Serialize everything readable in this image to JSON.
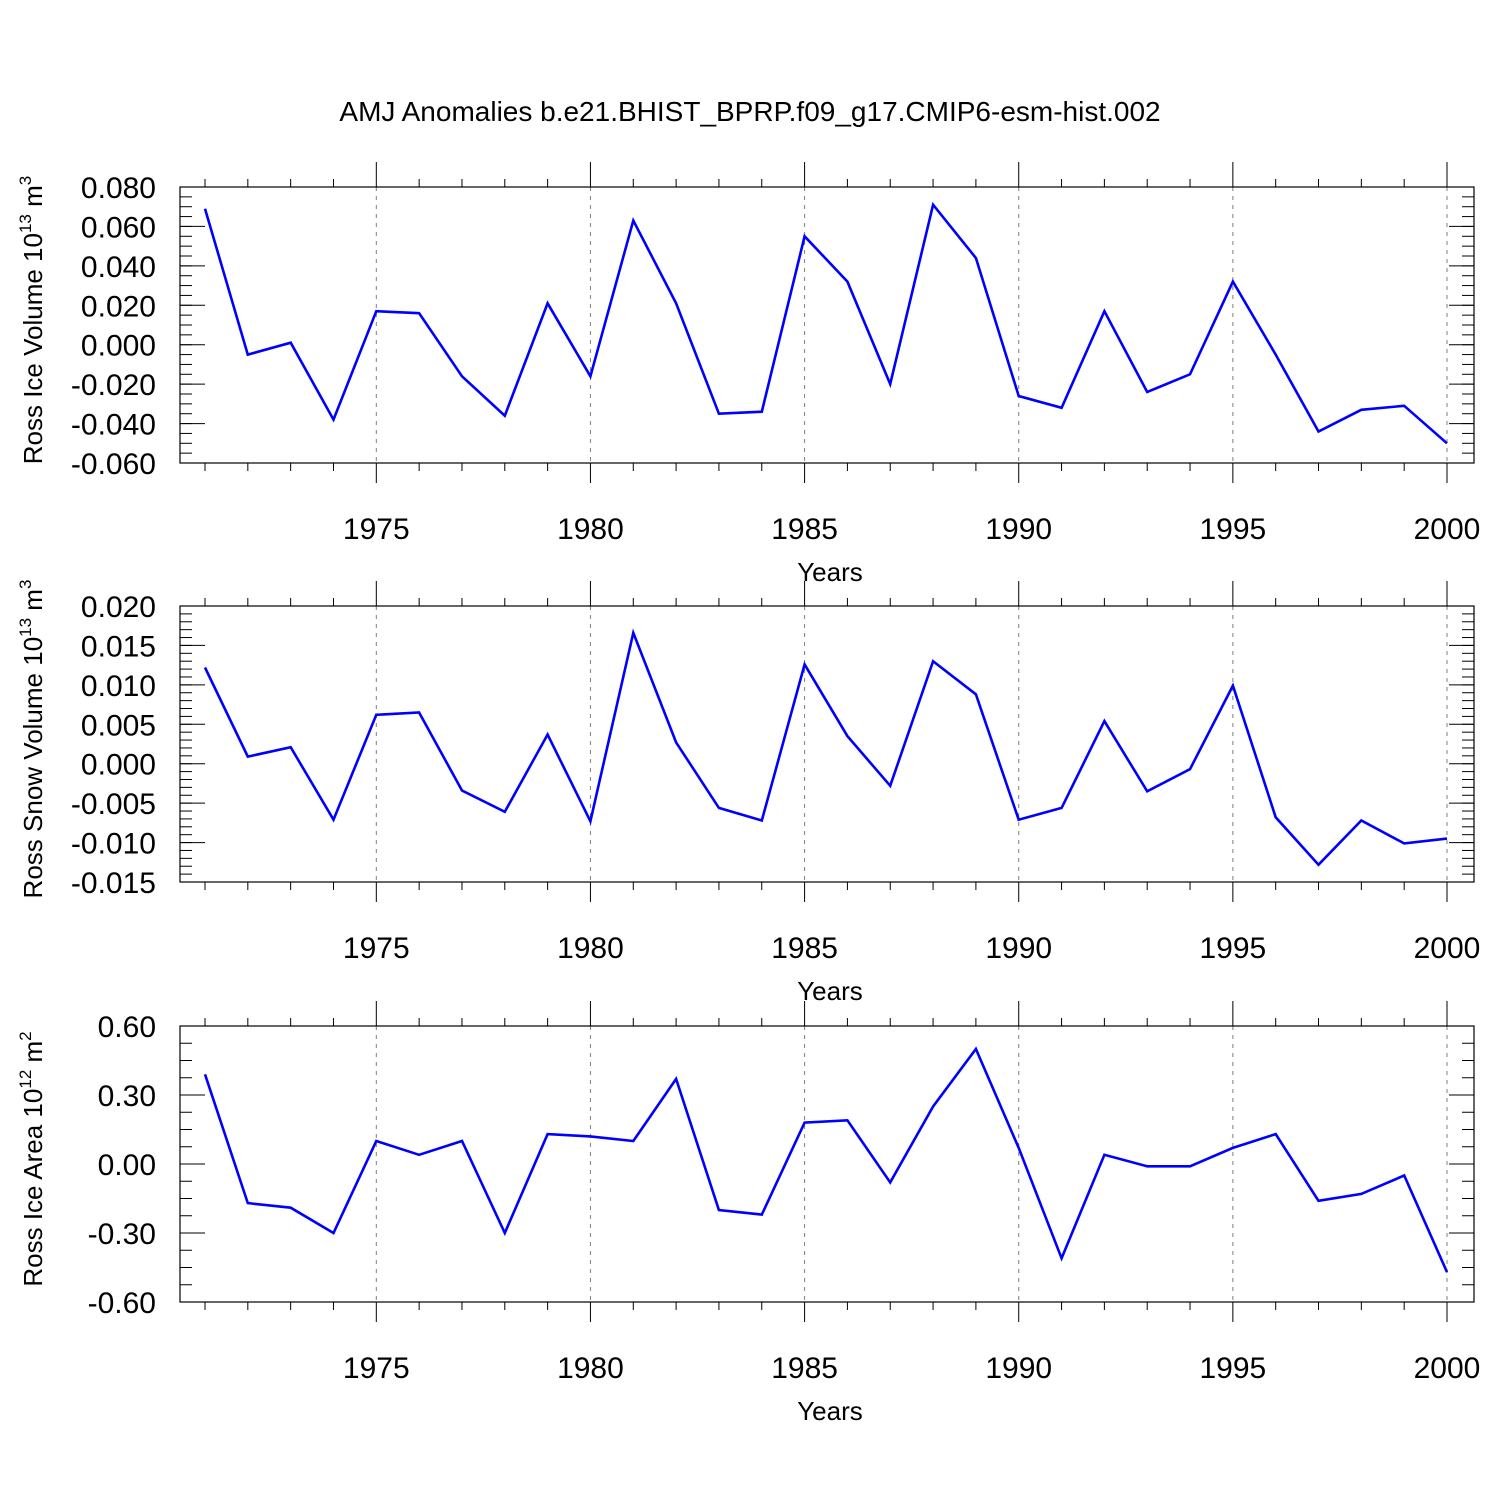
{
  "title": "AMJ Anomalies b.e21.BHIST_BPRP.f09_g17.CMIP6-esm-hist.002",
  "colors": {
    "line": "#0000ff",
    "axis": "#000000",
    "grid": "#7f7f7f"
  },
  "chart_data": [
    {
      "type": "line",
      "ylabel_main": "Ross Ice Volume 10",
      "ylabel_exp": "13",
      "ylabel_unit": "m",
      "ylabel_unit_exp": "3",
      "xlabel": "Years",
      "xlim": [
        1971,
        2000
      ],
      "ylim": [
        -0.06,
        0.08
      ],
      "yticks": [
        -0.06,
        -0.04,
        -0.02,
        0.0,
        0.02,
        0.04,
        0.06,
        0.08
      ],
      "ytick_labels": [
        "-0.060",
        "-0.040",
        "-0.020",
        "0.000",
        "0.020",
        "0.040",
        "0.060",
        "0.080"
      ],
      "yminor_step": 0.005,
      "xticks": [
        1975,
        1980,
        1985,
        1990,
        1995,
        2000
      ],
      "xtick_labels": [
        "1975",
        "1980",
        "1985",
        "1990",
        "1995",
        "2000"
      ],
      "grid": "vertical-dashed",
      "x": [
        1971,
        1972,
        1973,
        1974,
        1975,
        1976,
        1977,
        1978,
        1979,
        1980,
        1981,
        1982,
        1983,
        1984,
        1985,
        1986,
        1987,
        1988,
        1989,
        1990,
        1991,
        1992,
        1993,
        1994,
        1995,
        1996,
        1997,
        1998,
        1999,
        2000
      ],
      "y": [
        0.069,
        -0.005,
        0.001,
        -0.038,
        0.017,
        0.016,
        -0.016,
        -0.036,
        0.021,
        -0.016,
        0.063,
        0.021,
        -0.035,
        -0.034,
        0.055,
        0.032,
        -0.02,
        0.071,
        0.044,
        -0.026,
        -0.032,
        0.017,
        -0.024,
        -0.015,
        0.032,
        -0.005,
        -0.044,
        -0.033,
        -0.031,
        -0.05
      ]
    },
    {
      "type": "line",
      "ylabel_main": "Ross Snow Volume 10",
      "ylabel_exp": "13",
      "ylabel_unit": "m",
      "ylabel_unit_exp": "3",
      "xlabel": "Years",
      "xlim": [
        1971,
        2000
      ],
      "ylim": [
        -0.015,
        0.02
      ],
      "yticks": [
        -0.015,
        -0.01,
        -0.005,
        0.0,
        0.005,
        0.01,
        0.015,
        0.02
      ],
      "ytick_labels": [
        "-0.015",
        "-0.010",
        "-0.005",
        "0.000",
        "0.005",
        "0.010",
        "0.015",
        "0.020"
      ],
      "yminor_step": 0.001,
      "xticks": [
        1975,
        1980,
        1985,
        1990,
        1995,
        2000
      ],
      "xtick_labels": [
        "1975",
        "1980",
        "1985",
        "1990",
        "1995",
        "2000"
      ],
      "grid": "vertical-dashed",
      "x": [
        1971,
        1972,
        1973,
        1974,
        1975,
        1976,
        1977,
        1978,
        1979,
        1980,
        1981,
        1982,
        1983,
        1984,
        1985,
        1986,
        1987,
        1988,
        1989,
        1990,
        1991,
        1992,
        1993,
        1994,
        1995,
        1996,
        1997,
        1998,
        1999,
        2000
      ],
      "y": [
        0.0122,
        0.0009,
        0.0021,
        -0.0071,
        0.0062,
        0.0065,
        -0.0034,
        -0.0061,
        0.0037,
        -0.0073,
        0.0166,
        0.0027,
        -0.0056,
        -0.0072,
        0.0126,
        0.0035,
        -0.0028,
        0.013,
        0.0088,
        -0.0071,
        -0.0056,
        0.0054,
        -0.0035,
        -0.0007,
        0.0099,
        -0.0068,
        -0.0128,
        -0.0072,
        -0.0101,
        -0.0095
      ]
    },
    {
      "type": "line",
      "ylabel_main": "Ross Ice Area 10",
      "ylabel_exp": "12",
      "ylabel_unit": "m",
      "ylabel_unit_exp": "2",
      "xlabel": "Years",
      "xlim": [
        1971,
        2000
      ],
      "ylim": [
        -0.6,
        0.6
      ],
      "yticks": [
        -0.6,
        -0.3,
        0.0,
        0.3,
        0.6
      ],
      "ytick_labels": [
        "-0.60",
        "-0.30",
        "0.00",
        "0.30",
        "0.60"
      ],
      "yminor_step": 0.075,
      "xticks": [
        1975,
        1980,
        1985,
        1990,
        1995,
        2000
      ],
      "xtick_labels": [
        "1975",
        "1980",
        "1985",
        "1990",
        "1995",
        "2000"
      ],
      "grid": "vertical-dashed",
      "x": [
        1971,
        1972,
        1973,
        1974,
        1975,
        1976,
        1977,
        1978,
        1979,
        1980,
        1981,
        1982,
        1983,
        1984,
        1985,
        1986,
        1987,
        1988,
        1989,
        1990,
        1991,
        1992,
        1993,
        1994,
        1995,
        1996,
        1997,
        1998,
        1999,
        2000
      ],
      "y": [
        0.39,
        -0.17,
        -0.19,
        -0.3,
        0.1,
        0.04,
        0.1,
        -0.3,
        0.13,
        0.12,
        0.1,
        0.37,
        -0.2,
        -0.22,
        0.18,
        0.19,
        -0.08,
        0.25,
        0.5,
        0.07,
        -0.41,
        0.04,
        -0.01,
        -0.01,
        0.07,
        0.13,
        -0.16,
        -0.13,
        -0.05,
        -0.47
      ]
    }
  ]
}
